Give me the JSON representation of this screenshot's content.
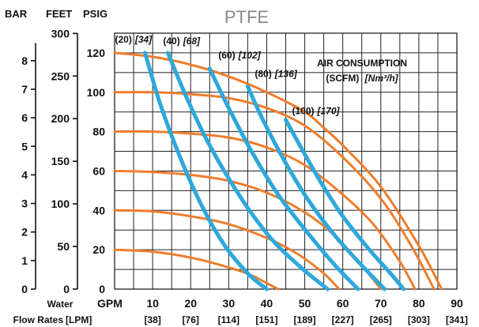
{
  "chart_data": {
    "type": "line",
    "title": "PTFE",
    "axis_headers": {
      "bar": "BAR",
      "feet": "FEET",
      "psig": "PSIG"
    },
    "x_axis": {
      "label_line1": "Water",
      "label_line2": "Flow Rates",
      "gpm_label": "GPM",
      "lpm_label": "[LPM]",
      "range_gpm": [
        0,
        90
      ],
      "gpm_ticks": [
        "10",
        "20",
        "30",
        "40",
        "50",
        "60",
        "70",
        "80",
        "90"
      ],
      "lpm_ticks": [
        "[38]",
        "[76]",
        "[114]",
        "[151]",
        "[189]",
        "[227]",
        "[265]",
        "[303]",
        "[341]"
      ]
    },
    "y_axis_psig": {
      "range": [
        0,
        130
      ],
      "ticks": [
        "0",
        "20",
        "40",
        "60",
        "80",
        "100",
        "120"
      ]
    },
    "y_axis_feet": {
      "ticks": [
        "0",
        "50",
        "100",
        "150",
        "200",
        "250",
        "300"
      ]
    },
    "y_axis_bar": {
      "ticks": [
        "0",
        "1",
        "2",
        "3",
        "4",
        "5",
        "6",
        "7",
        "8"
      ]
    },
    "legend": {
      "title": "AIR CONSUMPTION",
      "subtitle_plain": "(SCFM)",
      "subtitle_italic": "[Nm³/h]"
    },
    "head_series": [
      {
        "x": [
          0,
          10,
          20,
          30,
          36,
          40,
          43
        ],
        "y": [
          20,
          19,
          16,
          11,
          7,
          3,
          0
        ]
      },
      {
        "x": [
          0,
          10,
          20,
          30,
          40,
          48,
          55,
          59
        ],
        "y": [
          40,
          39.5,
          37,
          33,
          26,
          18,
          8,
          0
        ]
      },
      {
        "x": [
          0,
          10,
          20,
          30,
          40,
          50,
          58,
          65,
          70
        ],
        "y": [
          60,
          59.5,
          58,
          55,
          49,
          39,
          27,
          12,
          0
        ]
      },
      {
        "x": [
          0,
          10,
          20,
          30,
          40,
          50,
          60,
          68,
          75,
          79
        ],
        "y": [
          80,
          80,
          79,
          77,
          72,
          63,
          48,
          33,
          14,
          0
        ]
      },
      {
        "x": [
          0,
          10,
          20,
          30,
          40,
          50,
          60,
          70,
          78,
          84
        ],
        "y": [
          100,
          100,
          99,
          97,
          92,
          83,
          67,
          46,
          22,
          0
        ]
      },
      {
        "x": [
          0,
          10,
          20,
          30,
          40,
          50,
          55,
          60,
          70,
          80,
          86
        ],
        "y": [
          120,
          118,
          114,
          108,
          100,
          90,
          82,
          73,
          52,
          22,
          0
        ]
      }
    ],
    "air_series": [
      {
        "label": "(20)",
        "label_metric": "[34]",
        "x": [
          8,
          12,
          17,
          23,
          29,
          35,
          40
        ],
        "y": [
          120,
          94,
          68,
          42,
          22,
          8,
          0
        ]
      },
      {
        "label": "(40)",
        "label_metric": "[68]",
        "x": [
          14,
          19,
          25,
          33,
          41,
          49,
          56
        ],
        "y": [
          120,
          97,
          73,
          47,
          26,
          11,
          0
        ]
      },
      {
        "label": "(60)",
        "label_metric": "[102]",
        "x": [
          25,
          30,
          36,
          43,
          51,
          58,
          64
        ],
        "y": [
          112,
          92,
          70,
          48,
          28,
          12,
          0
        ]
      },
      {
        "label": "(80)",
        "label_metric": "[136]",
        "x": [
          35,
          39,
          45,
          51,
          58,
          65,
          71
        ],
        "y": [
          103,
          86,
          64,
          45,
          27,
          12,
          0
        ]
      },
      {
        "label": "(100)",
        "label_metric": "[170]",
        "x": [
          45,
          49,
          54,
          60,
          67,
          73,
          76
        ],
        "y": [
          86,
          72,
          55,
          37,
          20,
          7,
          0
        ]
      }
    ],
    "grid": true,
    "legend_position": "top-right"
  }
}
